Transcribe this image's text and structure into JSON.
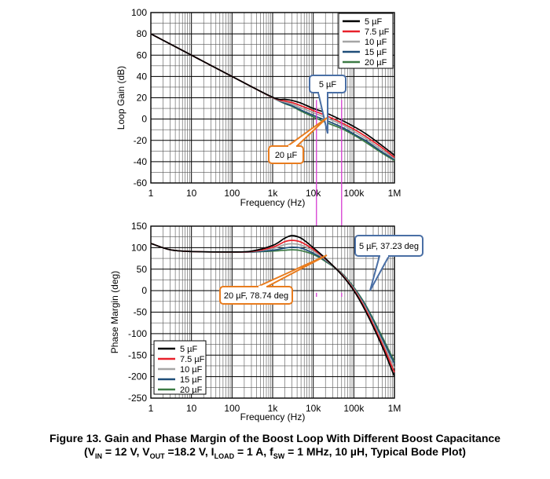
{
  "chart_data": [
    {
      "type": "line",
      "xlabel": "Frequency (Hz)",
      "ylabel": "Loop Gain (dB)",
      "xscale": "log",
      "xlim": [
        1,
        1000000
      ],
      "ylim": [
        -60,
        100
      ],
      "xticks": [
        1,
        10,
        100,
        1000,
        10000,
        100000,
        1000000
      ],
      "xtick_labels": [
        "1",
        "10",
        "100",
        "1k",
        "10k",
        "100k",
        "1M"
      ],
      "yticks": [
        -60,
        -40,
        -20,
        0,
        20,
        40,
        60,
        80,
        100
      ],
      "ytick_labels": [
        "-60",
        "-40",
        "-20",
        "0",
        "20",
        "40",
        "60",
        "80",
        "100"
      ],
      "grid": true,
      "legend_position": "top-right",
      "x": [
        1,
        10,
        100,
        1000,
        2000,
        3000,
        5000,
        10000,
        20000,
        50000,
        100000,
        200000,
        500000,
        1000000
      ],
      "series": [
        {
          "name": "5 µF",
          "color": "#000000",
          "values": [
            80,
            60,
            40,
            20.5,
            18.5,
            17.5,
            15,
            10,
            6,
            -1,
            -7,
            -14,
            -25,
            -34
          ]
        },
        {
          "name": "7.5 µF",
          "color": "#e8212b",
          "values": [
            80,
            60,
            40,
            20.3,
            17,
            15.5,
            12.5,
            8,
            3.5,
            -3.5,
            -9.5,
            -16.5,
            -27,
            -36
          ]
        },
        {
          "name": "10 µF",
          "color": "#a5a5a5",
          "values": [
            80,
            60,
            40,
            20.1,
            16,
            14,
            10.5,
            6,
            1.5,
            -5,
            -11.5,
            -18.5,
            -29,
            -37
          ]
        },
        {
          "name": "15 µF",
          "color": "#1f4e79",
          "values": [
            80,
            60,
            40,
            20,
            15,
            12.5,
            8.5,
            3.5,
            -1,
            -7.5,
            -14,
            -20.5,
            -31,
            -38
          ]
        },
        {
          "name": "20 µF",
          "color": "#3c7a44",
          "values": [
            80,
            60,
            40,
            20,
            14.5,
            12,
            7.5,
            2,
            -3,
            -9,
            -15,
            -22,
            -32,
            -39
          ]
        }
      ],
      "markers_x": [
        12000,
        50000
      ],
      "callouts": [
        {
          "text": "5 µF",
          "x": 50000,
          "y": 0
        },
        {
          "text": "20 µF",
          "x": 12000,
          "y": 0
        }
      ]
    },
    {
      "type": "line",
      "xlabel": "Frequency (Hz)",
      "ylabel": "Phase Margin (deg)",
      "xscale": "log",
      "xlim": [
        1,
        1000000
      ],
      "ylim": [
        -250,
        150
      ],
      "xticks": [
        1,
        10,
        100,
        1000,
        10000,
        100000,
        1000000
      ],
      "xtick_labels": [
        "1",
        "10",
        "100",
        "1k",
        "10k",
        "100k",
        "1M"
      ],
      "yticks": [
        -250,
        -200,
        -150,
        -100,
        -50,
        0,
        50,
        100,
        150
      ],
      "ytick_labels": [
        "-250",
        "-200",
        "-150",
        "-100",
        "-50",
        "0",
        "50",
        "100",
        "150"
      ],
      "grid": true,
      "legend_position": "bottom-left",
      "x": [
        1,
        3,
        10,
        100,
        300,
        1000,
        2000,
        3000,
        5000,
        10000,
        20000,
        50000,
        100000,
        200000,
        500000,
        1000000
      ],
      "series": [
        {
          "name": "5 µF",
          "color": "#000000",
          "values": [
            110,
            95,
            91,
            90,
            92,
            105,
            122,
            128,
            122,
            100,
            75,
            37,
            0,
            -50,
            -130,
            -200
          ]
        },
        {
          "name": "7.5 µF",
          "color": "#e8212b",
          "values": [
            110,
            95,
            91,
            90,
            91,
            101,
            114,
            117,
            113,
            96,
            74,
            38,
            2,
            -46,
            -124,
            -190
          ]
        },
        {
          "name": "10 µF",
          "color": "#a5a5a5",
          "values": [
            110,
            95,
            91,
            90,
            91,
            98,
            107,
            109,
            106,
            92,
            72,
            39,
            4,
            -42,
            -118,
            -180
          ]
        },
        {
          "name": "15 µF",
          "color": "#1f4e79",
          "values": [
            110,
            95,
            91,
            90,
            90,
            94,
            99,
            101,
            99,
            87,
            70,
            40,
            6,
            -38,
            -112,
            -170
          ]
        },
        {
          "name": "20 µF",
          "color": "#3c7a44",
          "values": [
            110,
            95,
            91,
            90,
            90,
            92,
            94,
            95,
            93,
            84,
            68,
            41,
            8,
            -35,
            -107,
            -165
          ]
        }
      ],
      "markers_x": [
        12000,
        50000
      ],
      "callouts": [
        {
          "text": "5 µF, 37.23 deg",
          "x": 50000,
          "y": 40
        },
        {
          "text": "20 µF, 78.74 deg",
          "x": 12000,
          "y": 78
        }
      ]
    }
  ],
  "caption": {
    "line1": "Figure 13.  Gain and Phase Margin of the Boost Loop With Different Boost Capacitance",
    "l2_open": "(V",
    "l2_vin_sub": "IN",
    "l2_vin_val": " = 12 V, V",
    "l2_vout_sub": "OUT",
    "l2_vout_val": " =18.2 V, I",
    "l2_iload_sub": "LOAD",
    "l2_iload_val": " = 1 A, f",
    "l2_fsw_sub": "SW",
    "l2_fsw_val": " = 1 MHz, 10 µH, Typical Bode Plot)"
  }
}
